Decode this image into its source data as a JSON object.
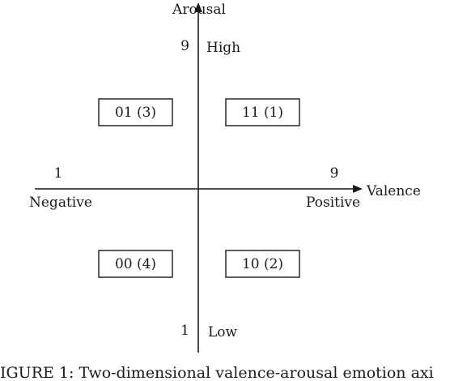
{
  "y_axis": {
    "title": "Arousal",
    "max_value": "9",
    "max_label": "High",
    "min_value": "1",
    "min_label": "Low"
  },
  "x_axis": {
    "title": "Valence",
    "min_value": "1",
    "min_label": "Negative",
    "max_value": "9",
    "max_label": "Positive"
  },
  "quadrants": {
    "top_left": "01 (3)",
    "top_right": "11 (1)",
    "bottom_left": "00 (4)",
    "bottom_right": "10 (2)"
  },
  "caption": "IGURE 1: Two-dimensional valence-arousal emotion axi"
}
